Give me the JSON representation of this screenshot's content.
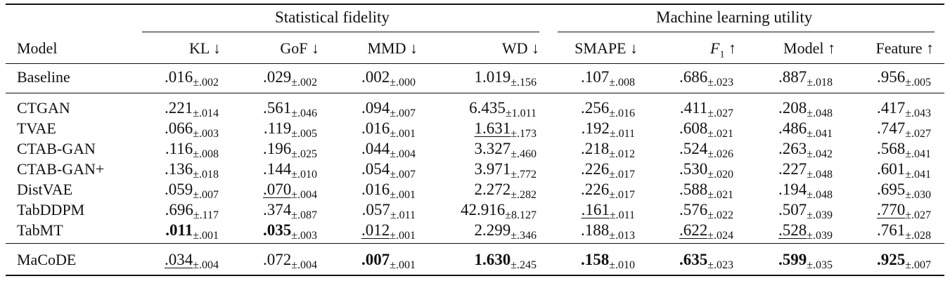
{
  "groups": {
    "statistical": "Statistical fidelity",
    "ml_utility": "Machine learning utility"
  },
  "columns": {
    "model": "Model",
    "kl": "KL ↓",
    "gof": "GoF ↓",
    "mmd": "MMD ↓",
    "wd": "WD ↓",
    "smape": "SMAPE ↓",
    "f1_letter": "F",
    "f1_sub": "1",
    "f1_arrow": " ↑",
    "model_util": "Model ↑",
    "feature": "Feature ↑"
  },
  "rows": [
    {
      "name": "Baseline",
      "cells": [
        {
          "m": ".016",
          "s": "±.002"
        },
        {
          "m": ".029",
          "s": "±.002"
        },
        {
          "m": ".002",
          "s": "±.000"
        },
        {
          "m": "1.019",
          "s": "±.156"
        },
        {
          "m": ".107",
          "s": "±.008"
        },
        {
          "m": ".686",
          "s": "±.023"
        },
        {
          "m": ".887",
          "s": "±.018"
        },
        {
          "m": ".956",
          "s": "±.005"
        }
      ]
    },
    {
      "name": "CTGAN",
      "cells": [
        {
          "m": ".221",
          "s": "±.014"
        },
        {
          "m": ".561",
          "s": "±.046"
        },
        {
          "m": ".094",
          "s": "±.007"
        },
        {
          "m": "6.435",
          "s": "±1.011"
        },
        {
          "m": ".256",
          "s": "±.016"
        },
        {
          "m": ".411",
          "s": "±.027"
        },
        {
          "m": ".208",
          "s": "±.048"
        },
        {
          "m": ".417",
          "s": "±.043"
        }
      ]
    },
    {
      "name": "TVAE",
      "cells": [
        {
          "m": ".066",
          "s": "±.003"
        },
        {
          "m": ".119",
          "s": "±.005"
        },
        {
          "m": ".016",
          "s": "±.001"
        },
        {
          "m": "1.631",
          "s": "±.173",
          "u": true
        },
        {
          "m": ".192",
          "s": "±.011"
        },
        {
          "m": ".608",
          "s": "±.021"
        },
        {
          "m": ".486",
          "s": "±.041"
        },
        {
          "m": ".747",
          "s": "±.027"
        }
      ]
    },
    {
      "name": "CTAB-GAN",
      "cells": [
        {
          "m": ".116",
          "s": "±.008"
        },
        {
          "m": ".196",
          "s": "±.025"
        },
        {
          "m": ".044",
          "s": "±.004"
        },
        {
          "m": "3.327",
          "s": "±.460"
        },
        {
          "m": ".218",
          "s": "±.012"
        },
        {
          "m": ".524",
          "s": "±.026"
        },
        {
          "m": ".263",
          "s": "±.042"
        },
        {
          "m": ".568",
          "s": "±.041"
        }
      ]
    },
    {
      "name": "CTAB-GAN+",
      "cells": [
        {
          "m": ".136",
          "s": "±.018"
        },
        {
          "m": ".144",
          "s": "±.010"
        },
        {
          "m": ".054",
          "s": "±.007"
        },
        {
          "m": "3.971",
          "s": "±.772"
        },
        {
          "m": ".226",
          "s": "±.017"
        },
        {
          "m": ".530",
          "s": "±.020"
        },
        {
          "m": ".227",
          "s": "±.048"
        },
        {
          "m": ".601",
          "s": "±.041"
        }
      ]
    },
    {
      "name": "DistVAE",
      "cells": [
        {
          "m": ".059",
          "s": "±.007"
        },
        {
          "m": ".070",
          "s": "±.004",
          "u": true
        },
        {
          "m": ".016",
          "s": "±.001"
        },
        {
          "m": "2.272",
          "s": "±.282"
        },
        {
          "m": ".226",
          "s": "±.017"
        },
        {
          "m": ".588",
          "s": "±.021"
        },
        {
          "m": ".194",
          "s": "±.048"
        },
        {
          "m": ".695",
          "s": "±.030"
        }
      ]
    },
    {
      "name": "TabDDPM",
      "cells": [
        {
          "m": ".696",
          "s": "±.117"
        },
        {
          "m": ".374",
          "s": "±.087"
        },
        {
          "m": ".057",
          "s": "±.011"
        },
        {
          "m": "42.916",
          "s": "±8.127"
        },
        {
          "m": ".161",
          "s": "±.011",
          "u": true
        },
        {
          "m": ".576",
          "s": "±.022"
        },
        {
          "m": ".507",
          "s": "±.039"
        },
        {
          "m": ".770",
          "s": "±.027",
          "u": true
        }
      ]
    },
    {
      "name": "TabMT",
      "cells": [
        {
          "m": ".011",
          "s": "±.001",
          "b": true
        },
        {
          "m": ".035",
          "s": "±.003",
          "b": true
        },
        {
          "m": ".012",
          "s": "±.001",
          "u": true
        },
        {
          "m": "2.299",
          "s": "±.346"
        },
        {
          "m": ".188",
          "s": "±.013"
        },
        {
          "m": ".622",
          "s": "±.024",
          "u": true
        },
        {
          "m": ".528",
          "s": "±.039",
          "u": true
        },
        {
          "m": ".761",
          "s": "±.028"
        }
      ]
    },
    {
      "name": "MaCoDE",
      "cells": [
        {
          "m": ".034",
          "s": "±.004",
          "u": true
        },
        {
          "m": ".072",
          "s": "±.004"
        },
        {
          "m": ".007",
          "s": "±.001",
          "b": true
        },
        {
          "m": "1.630",
          "s": "±.245",
          "b": true
        },
        {
          "m": ".158",
          "s": "±.010",
          "b": true
        },
        {
          "m": ".635",
          "s": "±.023",
          "b": true
        },
        {
          "m": ".599",
          "s": "±.035",
          "b": true
        },
        {
          "m": ".925",
          "s": "±.007",
          "b": true
        }
      ]
    }
  ]
}
